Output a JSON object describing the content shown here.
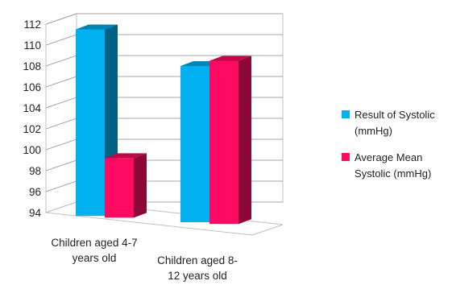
{
  "chart_data": {
    "type": "bar",
    "title": "",
    "xlabel": "",
    "ylabel": "",
    "ylim": [
      94,
      112
    ],
    "y_ticks": [
      94,
      96,
      98,
      100,
      102,
      104,
      106,
      108,
      110,
      112
    ],
    "grid": true,
    "legend_position": "right",
    "categories": [
      [
        "Children aged 4-7",
        "years old"
      ],
      [
        "Children aged 8-",
        "12 years old"
      ]
    ],
    "series": [
      {
        "name": [
          "Result of Systolic",
          "(mmHg)"
        ],
        "color": "#00b0f0",
        "values": [
          111.5,
          108
        ]
      },
      {
        "name": [
          "Average Mean",
          "Systolic (mmHg)"
        ],
        "color": "#ff0a63",
        "values": [
          99.2,
          108.5
        ]
      }
    ]
  }
}
